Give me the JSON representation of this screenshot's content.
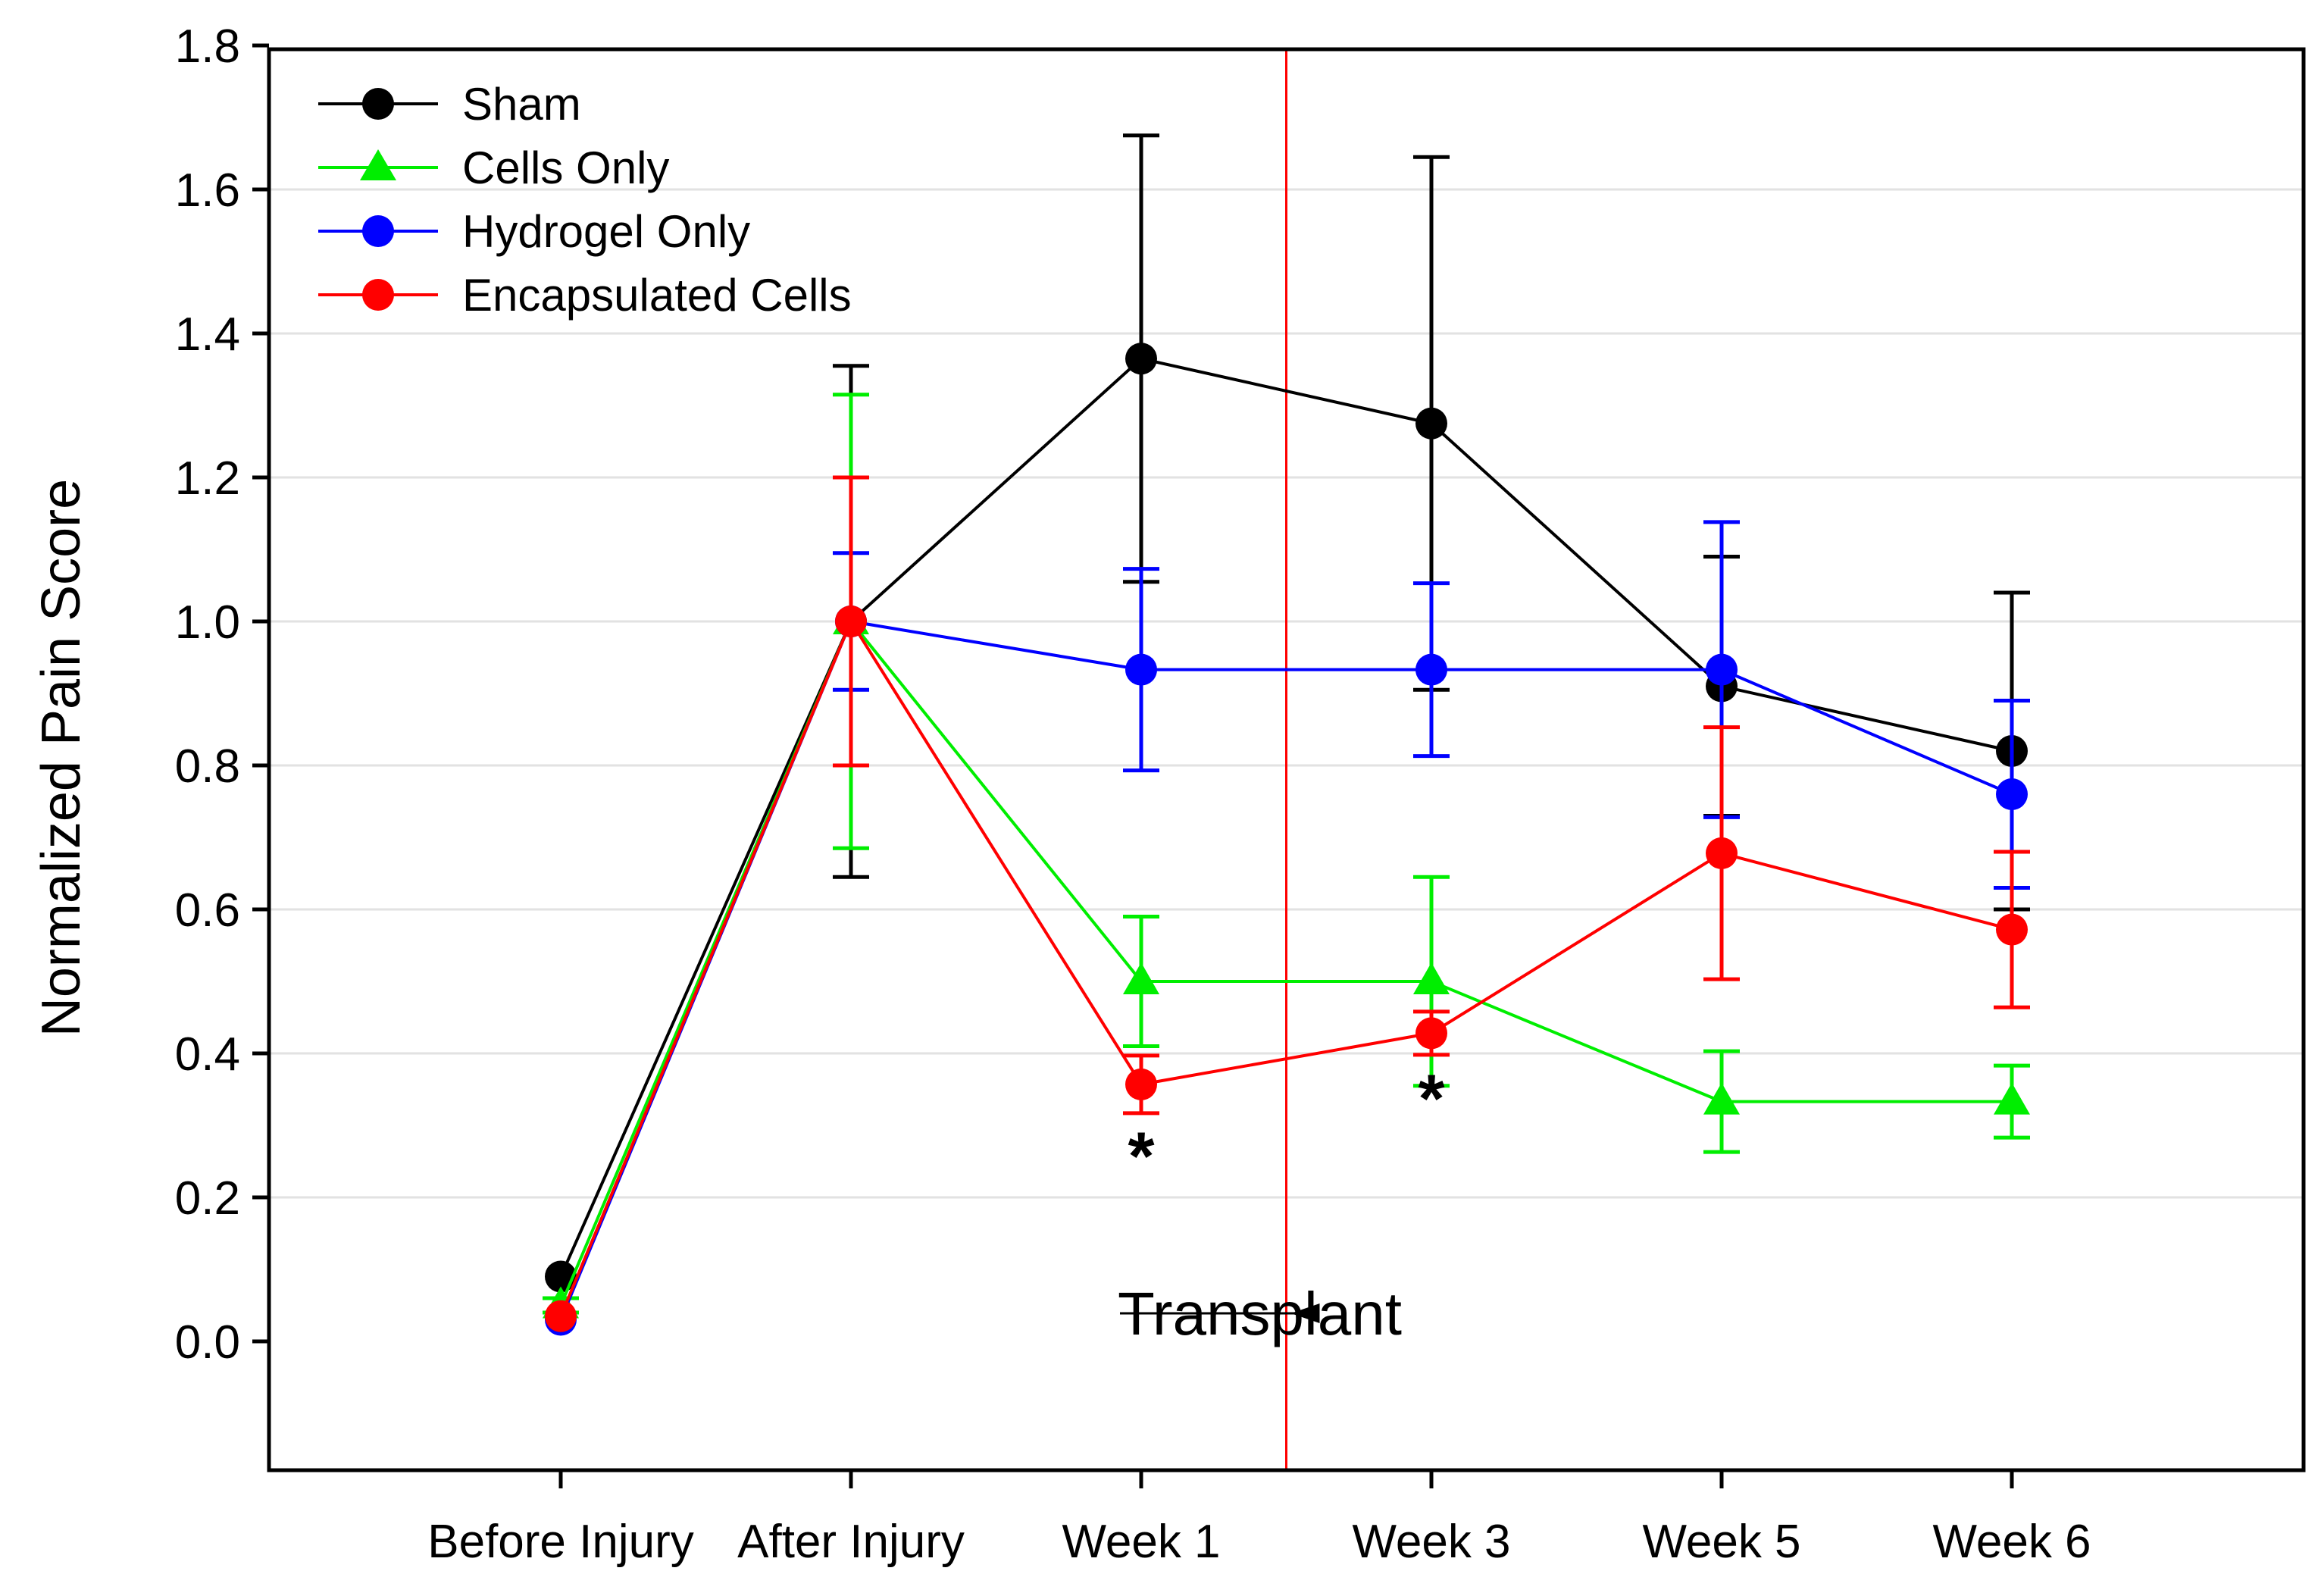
{
  "chart_data": {
    "type": "line",
    "title": "",
    "xlabel": "",
    "ylabel": "Normalized Pain Score",
    "ylim": [
      -0.18,
      1.8
    ],
    "yticks": [
      "0.0",
      "0.2",
      "0.4",
      "0.6",
      "0.8",
      "1.0",
      "1.2",
      "1.4",
      "1.6",
      "1.8"
    ],
    "categories": [
      "Before Injury",
      "After Injury",
      "Week 1",
      "Week 3",
      "Week 5",
      "Week 6"
    ],
    "grid": true,
    "legend_position": "top-left",
    "series": [
      {
        "name": "Sham",
        "color": "#000000",
        "marker": "circle",
        "values": [
          0.09,
          1.0,
          1.365,
          1.275,
          0.91,
          0.82
        ],
        "errors": [
          0.0,
          0.355,
          0.31,
          0.37,
          0.18,
          0.22
        ]
      },
      {
        "name": "Cells Only",
        "color": "#00ee00",
        "marker": "triangle",
        "values": [
          0.05,
          1.0,
          0.5,
          0.5,
          0.333,
          0.333
        ],
        "errors": [
          0.01,
          0.315,
          0.09,
          0.145,
          0.07,
          0.05
        ]
      },
      {
        "name": "Hydrogel Only",
        "color": "#0000ff",
        "marker": "circle",
        "values": [
          0.03,
          1.0,
          0.933,
          0.933,
          0.933,
          0.76
        ],
        "errors": [
          0.0,
          0.095,
          0.14,
          0.12,
          0.205,
          0.13
        ]
      },
      {
        "name": "Encapsulated Cells",
        "color": "#ff0000",
        "marker": "circle",
        "values": [
          0.035,
          1.0,
          0.357,
          0.428,
          0.678,
          0.572
        ],
        "errors": [
          0.0,
          0.2,
          0.04,
          0.03,
          0.175,
          0.108
        ]
      }
    ],
    "reference_line": {
      "category_position": 2.5,
      "color": "#ff0000",
      "label": "Transplant"
    },
    "significance": [
      {
        "category": "Week 1",
        "y": 0.265,
        "symbol": "*"
      },
      {
        "category": "Week 3",
        "y": 0.345,
        "symbol": "*"
      }
    ]
  }
}
